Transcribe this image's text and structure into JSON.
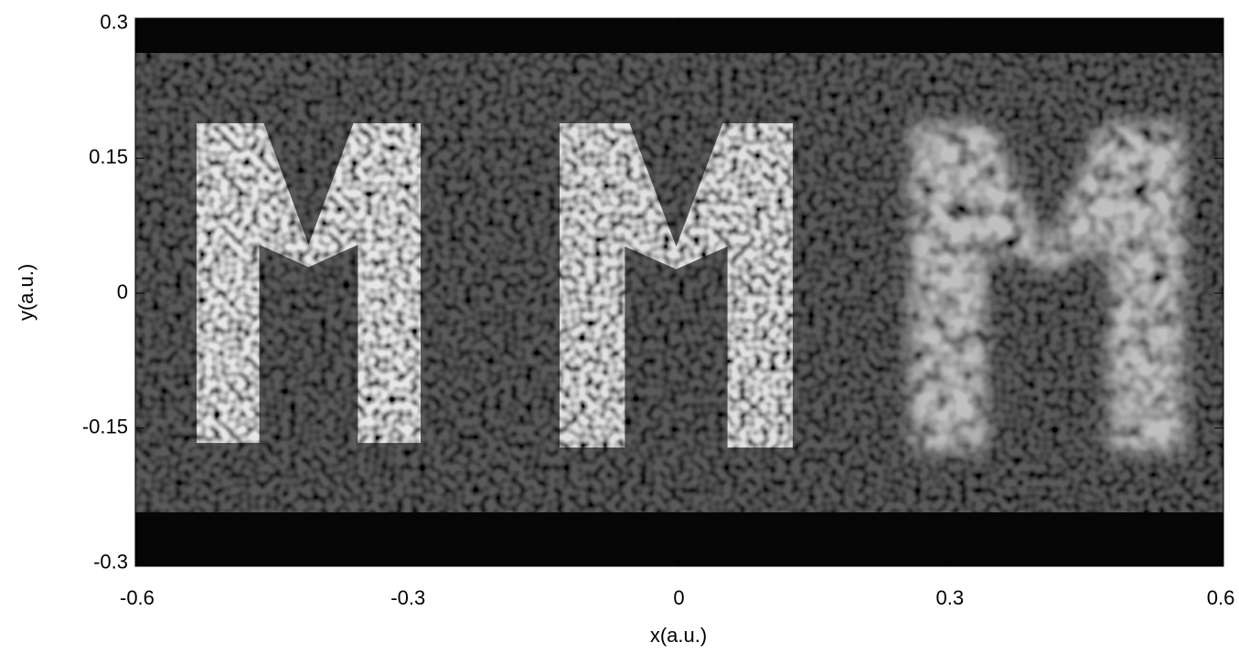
{
  "chart_data": {
    "type": "image",
    "x_label": "x(a.u.)",
    "y_label": "y(a.u.)",
    "xlim": [
      -0.602,
      0.603
    ],
    "ylim": [
      -0.3036,
      0.3056
    ],
    "xticks": [
      -0.6,
      -0.3,
      0,
      0.3,
      0.6
    ],
    "yticks": [
      -0.3,
      -0.15,
      0,
      0.15,
      0.3
    ],
    "colormap": "gray"
  }
}
